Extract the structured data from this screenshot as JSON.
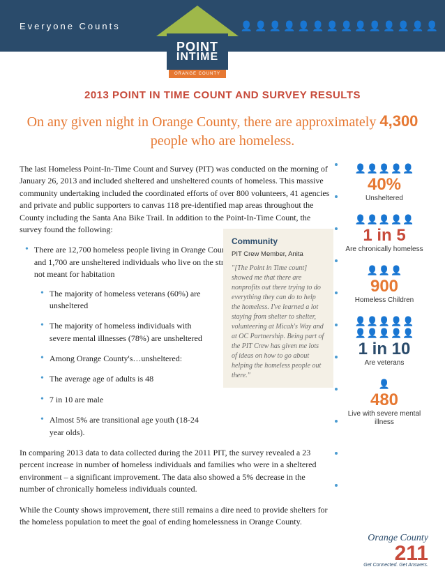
{
  "header": {
    "tagline": "Everyone Counts",
    "logo_line1": "POINT",
    "logo_line2": "INTIME",
    "logo_sub": "ORANGE COUNTY"
  },
  "title": "2013 POINT IN TIME COUNT AND SURVEY RESULTS",
  "headline_pre": "On any given night in Orange County, there are approximately ",
  "headline_num": "4,300",
  "headline_post": " people who are homeless.",
  "para1": "The last Homeless Point-In-Time Count and Survey (PIT) was conducted on the morning of January 26, 2013 and included sheltered and unsheltered counts of homeless. This massive community undertaking included the coordinated efforts of over 800 volunteers, 41 agencies and private and public supporters to canvas 118 pre-identified map areas throughout the County including the Santa Ana Bike Trail. In addition to the Point-In-Time Count, the survey found the following:",
  "main_bullet": "There are 12,700 homeless people living in Orange County over the course of a year and 1,700 are unsheltered individuals who live on the street, in a car, or in other places not meant for habitation",
  "sub_bullets": [
    "The majority of homeless veterans (60%) are unsheltered",
    "The majority of homeless individuals with severe mental illnesses (78%) are unsheltered",
    "Among Orange County's…unsheltered:",
    "The average age of adults is 48",
    "7 in 10 are male",
    "Almost 5% are transitional age youth (18-24 year olds)."
  ],
  "para2": "In comparing 2013 data to data collected during the 2011 PIT, the survey revealed a 23 percent increase in number of homeless individuals and families who were in a sheltered environment – a significant improvement.  The data also showed a 5% decrease in the number of chronically homeless individuals counted.",
  "para3": "While the County shows improvement, there still remains a dire need to provide shelters for the homeless population to meet the goal of ending homelessness in Orange County.",
  "quote": {
    "title": "Community",
    "subtitle": "PIT Crew Member, Anita",
    "text": "\"[The Point in Time count] showed me that there are nonprofits out there trying to do everything they can do to help the homeless. I've learned a lot staying from shelter to shelter, volunteering at Micah's Way and at OC Partnership. Being part of the PIT Crew has given me lots of ideas on how to go about helping the homeless people out there.\""
  },
  "stats": [
    {
      "num": "40%",
      "label": "Unsheltered",
      "color": "#e67832",
      "icons": 5,
      "highlight": 2,
      "hi_color": "#9fb84a",
      "base_color": "#888"
    },
    {
      "num": "1 in 5",
      "label": "Are chronically homeless",
      "color": "#c74a3a",
      "icons": 5,
      "highlight": 1,
      "hi_color": "#4a9bd1",
      "base_color": "#888"
    },
    {
      "num": "900",
      "label": "Homeless Children",
      "color": "#e67832",
      "icons": 3,
      "highlight": 2,
      "hi_color": "#9fb84a",
      "base_color": "#9fb84a"
    },
    {
      "num": "1 in 10",
      "label": "Are veterans",
      "color": "#2a4b6b",
      "icons": 10,
      "highlight": 1,
      "hi_color": "#4a9bd1",
      "base_color": "#888"
    },
    {
      "num": "480",
      "label": "Live with severe mental illness",
      "color": "#e67832",
      "icons": 1,
      "highlight": 1,
      "hi_color": "#c74a3a",
      "base_color": "#c74a3a"
    }
  ],
  "footer": {
    "oc": "Orange County",
    "num": "211",
    "tag": "Get Connected. Get Answers."
  }
}
